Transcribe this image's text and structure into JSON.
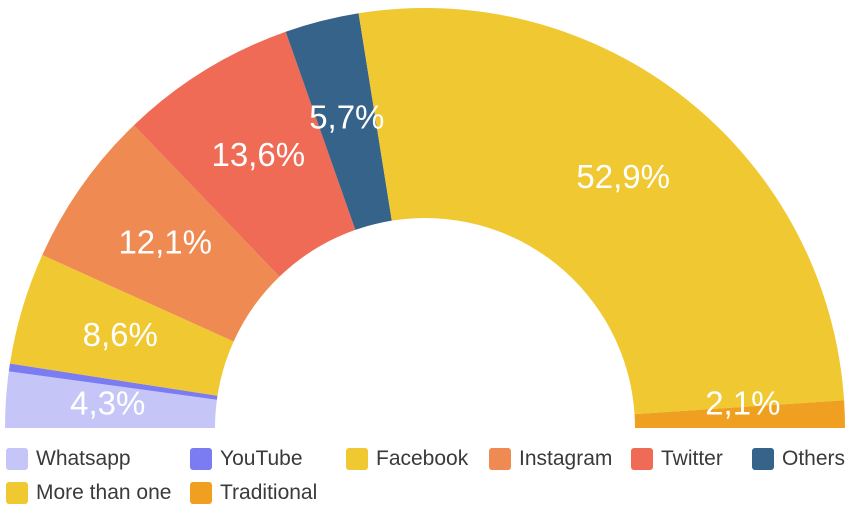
{
  "chart_data": {
    "type": "pie",
    "variant": "semi-donut",
    "title": "",
    "slices": [
      {
        "label": "Whatsapp",
        "value": 4.3,
        "value_label": "4,3%",
        "color": "#c5c6f7"
      },
      {
        "label": "YouTube",
        "value": 0.6,
        "value_label": "",
        "color": "#7b7cf2"
      },
      {
        "label": "Facebook",
        "value": 8.6,
        "value_label": "8,6%",
        "color": "#f0c832"
      },
      {
        "label": "Instagram",
        "value": 12.1,
        "value_label": "12,1%",
        "color": "#ef8a52"
      },
      {
        "label": "Twitter",
        "value": 13.6,
        "value_label": "13,6%",
        "color": "#ef6b55"
      },
      {
        "label": "Others",
        "value": 5.7,
        "value_label": "5,7%",
        "color": "#36638a"
      },
      {
        "label": "More than one",
        "value": 52.9,
        "value_label": "52,9%",
        "color": "#f0c832"
      },
      {
        "label": "Traditional",
        "value": 2.1,
        "value_label": "2,1%",
        "color": "#f0a020"
      }
    ],
    "legend": {
      "placement": "bottom",
      "rows": [
        [
          "Whatsapp",
          "YouTube",
          "Facebook",
          "Instagram",
          "Twitter",
          "Others"
        ],
        [
          "More than one",
          "Traditional"
        ]
      ]
    }
  }
}
